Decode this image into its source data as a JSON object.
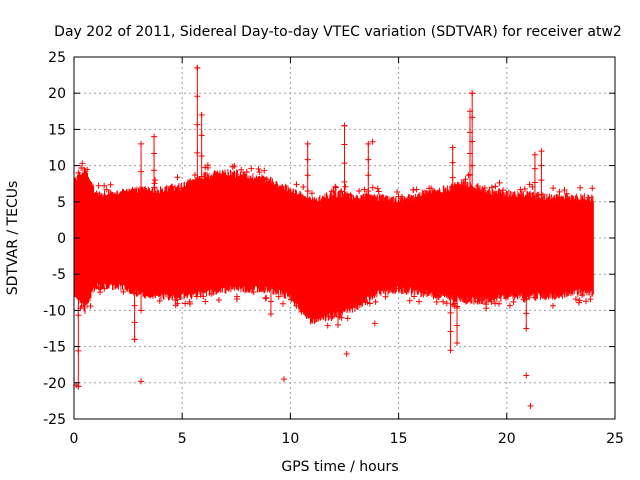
{
  "chart_data": {
    "type": "scatter",
    "title": "Day 202 of 2011, Sidereal Day-to-day VTEC variation (SDTVAR) for receiver atw2",
    "xlabel": "GPS time / hours",
    "ylabel": "SDTVAR / TECUs",
    "xlim": [
      0,
      25
    ],
    "ylim": [
      -25,
      25
    ],
    "x_ticks": [
      0,
      5,
      10,
      15,
      20,
      25
    ],
    "y_ticks": [
      -25,
      -20,
      -15,
      -10,
      -5,
      0,
      5,
      10,
      15,
      20,
      25
    ],
    "grid": true,
    "color": "#ff0000",
    "marker": "+",
    "series": [
      {
        "name": "SDTVAR",
        "x_range": [
          0,
          24
        ],
        "description_band": "dense band",
        "envelope": [
          {
            "x": 0.0,
            "lo": -7.0,
            "hi": 7.0
          },
          {
            "x": 0.5,
            "lo": -9.5,
            "hi": 9.0
          },
          {
            "x": 1.0,
            "lo": -6.0,
            "hi": 5.5
          },
          {
            "x": 2.0,
            "lo": -6.0,
            "hi": 5.5
          },
          {
            "x": 3.0,
            "lo": -7.0,
            "hi": 6.0
          },
          {
            "x": 4.0,
            "lo": -7.5,
            "hi": 6.0
          },
          {
            "x": 5.0,
            "lo": -7.5,
            "hi": 6.5
          },
          {
            "x": 6.0,
            "lo": -7.0,
            "hi": 8.0
          },
          {
            "x": 7.0,
            "lo": -6.5,
            "hi": 8.5
          },
          {
            "x": 8.0,
            "lo": -6.5,
            "hi": 8.0
          },
          {
            "x": 9.0,
            "lo": -6.5,
            "hi": 7.5
          },
          {
            "x": 10.0,
            "lo": -7.5,
            "hi": 6.0
          },
          {
            "x": 11.0,
            "lo": -11.0,
            "hi": 4.5
          },
          {
            "x": 12.0,
            "lo": -10.0,
            "hi": 5.5
          },
          {
            "x": 13.0,
            "lo": -9.0,
            "hi": 5.0
          },
          {
            "x": 14.0,
            "lo": -7.0,
            "hi": 5.0
          },
          {
            "x": 15.0,
            "lo": -6.5,
            "hi": 4.5
          },
          {
            "x": 16.0,
            "lo": -7.0,
            "hi": 5.5
          },
          {
            "x": 17.0,
            "lo": -7.5,
            "hi": 6.0
          },
          {
            "x": 18.0,
            "lo": -8.0,
            "hi": 7.0
          },
          {
            "x": 19.0,
            "lo": -8.0,
            "hi": 6.0
          },
          {
            "x": 20.0,
            "lo": -7.5,
            "hi": 5.5
          },
          {
            "x": 21.0,
            "lo": -7.5,
            "hi": 5.5
          },
          {
            "x": 22.0,
            "lo": -7.5,
            "hi": 5.0
          },
          {
            "x": 23.0,
            "lo": -7.0,
            "hi": 5.0
          },
          {
            "x": 24.0,
            "lo": -7.0,
            "hi": 5.0
          }
        ],
        "spikes": [
          {
            "x": 5.7,
            "lo": 0,
            "hi": 23.5
          },
          {
            "x": 5.9,
            "lo": 0,
            "hi": 17.0
          },
          {
            "x": 3.1,
            "lo": -10,
            "hi": 13.0
          },
          {
            "x": 3.7,
            "lo": 0,
            "hi": 14.0
          },
          {
            "x": 2.8,
            "lo": -14.0,
            "hi": 0
          },
          {
            "x": 12.5,
            "lo": 0,
            "hi": 15.5
          },
          {
            "x": 12.2,
            "lo": -12.0,
            "hi": 0
          },
          {
            "x": 10.8,
            "lo": 0,
            "hi": 13.0
          },
          {
            "x": 13.6,
            "lo": 0,
            "hi": 13.0
          },
          {
            "x": 18.4,
            "lo": 0,
            "hi": 20.0
          },
          {
            "x": 18.3,
            "lo": 0,
            "hi": 17.5
          },
          {
            "x": 17.5,
            "lo": 0,
            "hi": 12.5
          },
          {
            "x": 17.4,
            "lo": -15.5,
            "hi": 0
          },
          {
            "x": 17.7,
            "lo": -14.5,
            "hi": 0
          },
          {
            "x": 21.3,
            "lo": 0,
            "hi": 11.5
          },
          {
            "x": 21.6,
            "lo": 0,
            "hi": 12.0
          },
          {
            "x": 20.9,
            "lo": -12.5,
            "hi": 0
          },
          {
            "x": 9.1,
            "lo": -10.5,
            "hi": 0
          },
          {
            "x": 0.2,
            "lo": -20.5,
            "hi": 9.0
          }
        ],
        "outliers": [
          {
            "x": 0.1,
            "y": -20.3
          },
          {
            "x": 0.2,
            "y": -20.5
          },
          {
            "x": 3.1,
            "y": -19.8
          },
          {
            "x": 9.7,
            "y": -19.5
          },
          {
            "x": 12.6,
            "y": -16.0
          },
          {
            "x": 13.8,
            "y": 13.3
          },
          {
            "x": 13.9,
            "y": -11.8
          },
          {
            "x": 20.9,
            "y": -19.0
          },
          {
            "x": 21.1,
            "y": -23.2
          },
          {
            "x": 2.8,
            "y": -14.0
          },
          {
            "x": 5.7,
            "y": 23.5
          },
          {
            "x": 18.4,
            "y": 20.0
          },
          {
            "x": 12.5,
            "y": 15.5
          }
        ]
      }
    ]
  }
}
